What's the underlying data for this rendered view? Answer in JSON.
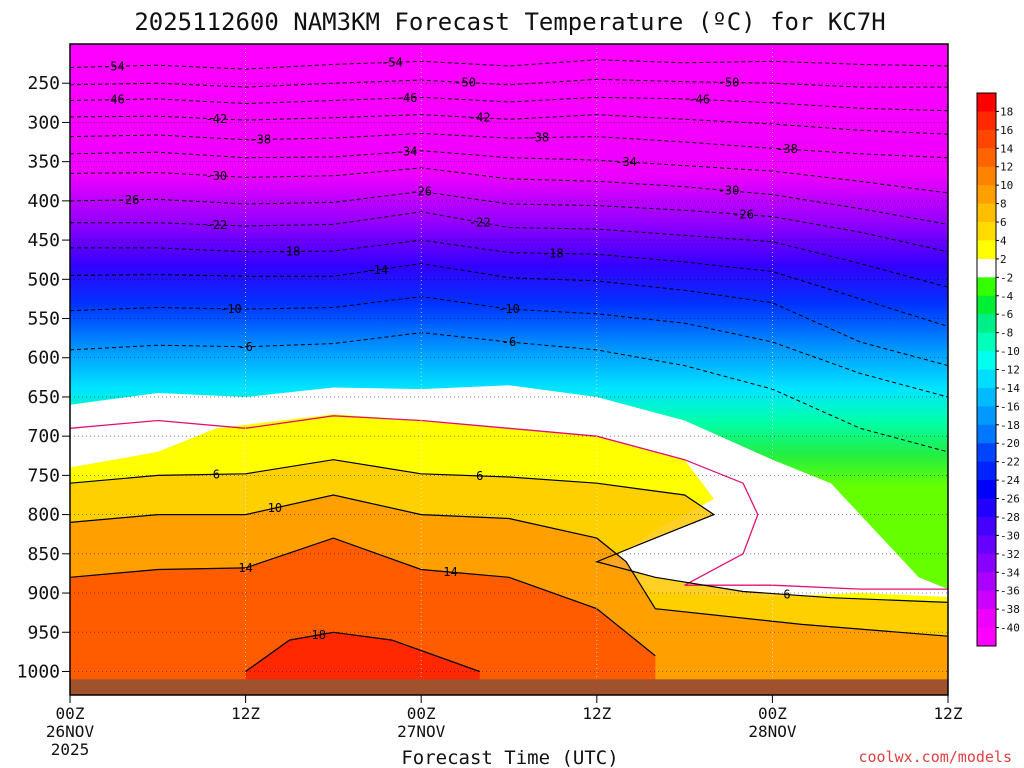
{
  "chart_data": {
    "type": "heatmap",
    "title": "2025112600 NAM3KM Forecast Temperature (ºC) for KC7H",
    "xlabel": "Forecast Time (UTC)",
    "ylabel": "",
    "watermark": "coolwx.com/models",
    "x_ticks": [
      {
        "hour": 0,
        "label": "00Z",
        "date": "26NOV",
        "year": "2025"
      },
      {
        "hour": 12,
        "label": "12Z",
        "date": "",
        "year": ""
      },
      {
        "hour": 24,
        "label": "00Z",
        "date": "27NOV",
        "year": ""
      },
      {
        "hour": 36,
        "label": "12Z",
        "date": "",
        "year": ""
      },
      {
        "hour": 48,
        "label": "00Z",
        "date": "28NOV",
        "year": ""
      },
      {
        "hour": 60,
        "label": "12Z",
        "date": "",
        "year": ""
      }
    ],
    "xlim": [
      0,
      60
    ],
    "y_ticks": [
      250,
      300,
      350,
      400,
      450,
      500,
      550,
      600,
      650,
      700,
      750,
      800,
      850,
      900,
      950,
      1000
    ],
    "ylim_hpa": [
      200,
      1030
    ],
    "surface_pressure_hpa": 1010,
    "ground_color": "#a0522d",
    "colorbar": {
      "labels": [
        "18",
        "16",
        "14",
        "12",
        "10",
        "8",
        "6",
        "4",
        "2",
        "-2",
        "-4",
        "-6",
        "-8",
        "-10",
        "-12",
        "-14",
        "-16",
        "-18",
        "-20",
        "-22",
        "-24",
        "-26",
        "-28",
        "-30",
        "-32",
        "-34",
        "-36",
        "-38",
        "-40"
      ],
      "colors": [
        "#ff0000",
        "#ff2800",
        "#ff4600",
        "#ff6400",
        "#ff8200",
        "#ffa000",
        "#ffbe00",
        "#ffdc00",
        "#ffff00",
        "#ffffff",
        "#33ff00",
        "#00ee33",
        "#00ee88",
        "#00ffbb",
        "#00ffee",
        "#00ddff",
        "#00bbff",
        "#0099ff",
        "#0077ff",
        "#0044ff",
        "#0022ff",
        "#0000ff",
        "#2200ff",
        "#4400ff",
        "#6600ff",
        "#8800ff",
        "#aa00ff",
        "#cc00ff",
        "#ee00ff",
        "#ff00ff"
      ]
    },
    "contours": [
      {
        "level": -54,
        "label": "-54",
        "label_hour": [
          3,
          22
        ],
        "hpa": [
          [
            0,
            230
          ],
          [
            6,
            227
          ],
          [
            12,
            232
          ],
          [
            18,
            226
          ],
          [
            24,
            222
          ],
          [
            30,
            228
          ],
          [
            36,
            220
          ],
          [
            42,
            224
          ],
          [
            48,
            222
          ],
          [
            54,
            226
          ],
          [
            60,
            228
          ]
        ]
      },
      {
        "level": -50,
        "label": "-50",
        "label_hour": [
          27,
          45
        ],
        "hpa": [
          [
            0,
            252
          ],
          [
            6,
            250
          ],
          [
            12,
            255
          ],
          [
            18,
            250
          ],
          [
            24,
            246
          ],
          [
            30,
            252
          ],
          [
            36,
            245
          ],
          [
            42,
            248
          ],
          [
            48,
            250
          ],
          [
            54,
            255
          ],
          [
            60,
            255
          ]
        ]
      },
      {
        "level": -46,
        "label": "-46",
        "label_hour": [
          3,
          23,
          43
        ],
        "hpa": [
          [
            0,
            272
          ],
          [
            6,
            270
          ],
          [
            12,
            276
          ],
          [
            18,
            272
          ],
          [
            24,
            268
          ],
          [
            30,
            274
          ],
          [
            36,
            268
          ],
          [
            42,
            270
          ],
          [
            48,
            275
          ],
          [
            54,
            282
          ],
          [
            60,
            285
          ]
        ]
      },
      {
        "level": -42,
        "label": "-42",
        "label_hour": [
          10,
          28
        ],
        "hpa": [
          [
            0,
            293
          ],
          [
            6,
            292
          ],
          [
            12,
            297
          ],
          [
            18,
            294
          ],
          [
            24,
            290
          ],
          [
            30,
            296
          ],
          [
            36,
            290
          ],
          [
            42,
            296
          ],
          [
            48,
            302
          ],
          [
            54,
            310
          ],
          [
            60,
            315
          ]
        ]
      },
      {
        "level": -38,
        "label": "-38",
        "label_hour": [
          13,
          32,
          49
        ],
        "hpa": [
          [
            0,
            318
          ],
          [
            6,
            316
          ],
          [
            12,
            322
          ],
          [
            18,
            320
          ],
          [
            24,
            314
          ],
          [
            30,
            320
          ],
          [
            36,
            318
          ],
          [
            42,
            325
          ],
          [
            48,
            333
          ],
          [
            54,
            340
          ],
          [
            60,
            345
          ]
        ]
      },
      {
        "level": -34,
        "label": "-34",
        "label_hour": [
          23,
          38
        ],
        "hpa": [
          [
            0,
            340
          ],
          [
            6,
            338
          ],
          [
            12,
            345
          ],
          [
            18,
            344
          ],
          [
            24,
            336
          ],
          [
            30,
            345
          ],
          [
            36,
            348
          ],
          [
            42,
            355
          ],
          [
            48,
            362
          ],
          [
            54,
            375
          ],
          [
            60,
            390
          ]
        ]
      },
      {
        "level": -30,
        "label": "-30",
        "label_hour": [
          10,
          45
        ],
        "hpa": [
          [
            0,
            365
          ],
          [
            6,
            364
          ],
          [
            12,
            370
          ],
          [
            18,
            368
          ],
          [
            24,
            358
          ],
          [
            30,
            372
          ],
          [
            36,
            375
          ],
          [
            42,
            382
          ],
          [
            48,
            392
          ],
          [
            54,
            410
          ],
          [
            60,
            430
          ]
        ]
      },
      {
        "level": -26,
        "label": "-26",
        "label_hour": [
          4,
          24,
          46
        ],
        "hpa": [
          [
            0,
            400
          ],
          [
            6,
            398
          ],
          [
            12,
            404
          ],
          [
            18,
            402
          ],
          [
            24,
            388
          ],
          [
            30,
            404
          ],
          [
            36,
            406
          ],
          [
            42,
            412
          ],
          [
            48,
            420
          ],
          [
            54,
            440
          ],
          [
            60,
            465
          ]
        ]
      },
      {
        "level": -22,
        "label": "-22",
        "label_hour": [
          10,
          28
        ],
        "hpa": [
          [
            0,
            428
          ],
          [
            6,
            428
          ],
          [
            12,
            432
          ],
          [
            18,
            430
          ],
          [
            24,
            414
          ],
          [
            30,
            434
          ],
          [
            36,
            436
          ],
          [
            42,
            444
          ],
          [
            48,
            452
          ],
          [
            54,
            480
          ],
          [
            60,
            510
          ]
        ]
      },
      {
        "level": -18,
        "label": "-18",
        "label_hour": [
          15,
          33
        ],
        "hpa": [
          [
            0,
            460
          ],
          [
            6,
            460
          ],
          [
            12,
            465
          ],
          [
            18,
            464
          ],
          [
            24,
            450
          ],
          [
            30,
            466
          ],
          [
            36,
            468
          ],
          [
            42,
            478
          ],
          [
            48,
            490
          ],
          [
            54,
            525
          ],
          [
            60,
            560
          ]
        ]
      },
      {
        "level": -14,
        "label": "-14",
        "label_hour": [
          21
        ],
        "hpa": [
          [
            0,
            495
          ],
          [
            6,
            494
          ],
          [
            12,
            496
          ],
          [
            18,
            496
          ],
          [
            24,
            480
          ],
          [
            30,
            498
          ],
          [
            36,
            502
          ],
          [
            42,
            514
          ],
          [
            48,
            530
          ],
          [
            54,
            580
          ],
          [
            60,
            610
          ]
        ]
      },
      {
        "level": -10,
        "label": "-10",
        "label_hour": [
          11,
          30
        ],
        "hpa": [
          [
            0,
            540
          ],
          [
            6,
            536
          ],
          [
            12,
            538
          ],
          [
            18,
            536
          ],
          [
            24,
            522
          ],
          [
            30,
            538
          ],
          [
            36,
            544
          ],
          [
            42,
            556
          ],
          [
            48,
            580
          ],
          [
            54,
            620
          ],
          [
            60,
            650
          ]
        ]
      },
      {
        "level": -6,
        "label": "-6",
        "label_hour": [
          12,
          30
        ],
        "hpa": [
          [
            0,
            590
          ],
          [
            6,
            584
          ],
          [
            12,
            586
          ],
          [
            18,
            582
          ],
          [
            24,
            568
          ],
          [
            30,
            580
          ],
          [
            36,
            590
          ],
          [
            42,
            610
          ],
          [
            48,
            640
          ],
          [
            54,
            690
          ],
          [
            60,
            720
          ]
        ]
      }
    ],
    "solid_contours": [
      {
        "level": 6,
        "label": "6",
        "label_hour": [
          10,
          28,
          49
        ],
        "hpa": [
          [
            0,
            760
          ],
          [
            6,
            750
          ],
          [
            12,
            748
          ],
          [
            18,
            730
          ],
          [
            24,
            748
          ],
          [
            30,
            752
          ],
          [
            36,
            760
          ],
          [
            42,
            775
          ],
          [
            44,
            800
          ],
          [
            40,
            830
          ],
          [
            36,
            860
          ],
          [
            40,
            880
          ],
          [
            46,
            898
          ],
          [
            52,
            906
          ],
          [
            60,
            912
          ]
        ]
      },
      {
        "level": 10,
        "label": "10",
        "label_hour": [
          14
        ],
        "hpa": [
          [
            0,
            810
          ],
          [
            6,
            800
          ],
          [
            12,
            800
          ],
          [
            18,
            775
          ],
          [
            24,
            800
          ],
          [
            30,
            805
          ],
          [
            36,
            830
          ],
          [
            38,
            860
          ],
          [
            40,
            920
          ],
          [
            50,
            940
          ],
          [
            60,
            955
          ]
        ]
      },
      {
        "level": 14,
        "label": "14",
        "label_hour": [
          12,
          26
        ],
        "hpa": [
          [
            0,
            880
          ],
          [
            6,
            870
          ],
          [
            12,
            868
          ],
          [
            18,
            830
          ],
          [
            24,
            870
          ],
          [
            30,
            880
          ],
          [
            36,
            920
          ],
          [
            40,
            980
          ]
        ]
      },
      {
        "level": 18,
        "label": "18",
        "label_hour": [
          17
        ],
        "hpa": [
          [
            12,
            1000
          ],
          [
            15,
            960
          ],
          [
            18,
            950
          ],
          [
            22,
            960
          ],
          [
            28,
            1000
          ]
        ]
      }
    ],
    "zones": [
      {
        "name": "above-freezing",
        "color": "#ffff00",
        "hpa_top": [
          [
            0,
            740
          ],
          [
            6,
            720
          ],
          [
            10,
            690
          ],
          [
            18,
            672
          ],
          [
            24,
            680
          ],
          [
            30,
            690
          ],
          [
            36,
            700
          ],
          [
            42,
            730
          ],
          [
            44,
            780
          ],
          [
            40,
            820
          ],
          [
            36,
            870
          ],
          [
            40,
            900
          ],
          [
            48,
            905
          ],
          [
            54,
            900
          ],
          [
            60,
            905
          ]
        ]
      },
      {
        "name": "near-freezing",
        "color": "#ffffff",
        "hpa_top": [
          [
            0,
            660
          ],
          [
            6,
            645
          ],
          [
            12,
            650
          ],
          [
            18,
            638
          ],
          [
            24,
            640
          ],
          [
            30,
            635
          ],
          [
            36,
            650
          ],
          [
            42,
            680
          ],
          [
            48,
            730
          ],
          [
            52,
            760
          ],
          [
            54,
            800
          ],
          [
            56,
            840
          ],
          [
            58,
            880
          ],
          [
            60,
            895
          ]
        ]
      }
    ],
    "magenta_line_hpa": [
      [
        0,
        690
      ],
      [
        6,
        680
      ],
      [
        12,
        690
      ],
      [
        18,
        674
      ],
      [
        24,
        680
      ],
      [
        30,
        690
      ],
      [
        36,
        700
      ],
      [
        42,
        730
      ],
      [
        46,
        760
      ],
      [
        47,
        800
      ],
      [
        46,
        850
      ],
      [
        42,
        890
      ],
      [
        48,
        890
      ],
      [
        54,
        895
      ],
      [
        60,
        895
      ]
    ]
  }
}
